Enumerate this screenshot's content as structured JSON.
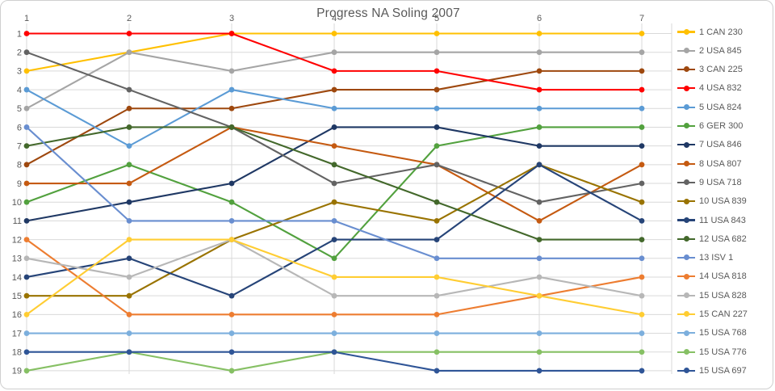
{
  "chart": {
    "title": "Progress NA Soling 2007"
  },
  "chart_data": {
    "type": "line",
    "title": "Progress NA Soling 2007",
    "x": [
      1,
      2,
      3,
      4,
      5,
      6,
      7
    ],
    "x_ticks": [
      "1",
      "2",
      "3",
      "4",
      "5",
      "6",
      "7"
    ],
    "x_axis_position": "top",
    "y_ticks": [
      "1",
      "2",
      "3",
      "4",
      "5",
      "6",
      "7",
      "8",
      "9",
      "10",
      "11",
      "12",
      "13",
      "14",
      "15",
      "16",
      "17",
      "18",
      "19"
    ],
    "y_axis": {
      "min": 1,
      "max": 19,
      "inverted": true,
      "meaning": "regatta standing (1 = first place), competition ranking with ties"
    },
    "grid": true,
    "legend_position": "right",
    "gridline_color": "#D9D9D9",
    "tick_color": "#595959",
    "title_color": "#595959",
    "series": [
      {
        "name": "1 CAN 230",
        "color": "#FFC000",
        "values": [
          3,
          2,
          1,
          1,
          1,
          1,
          1
        ]
      },
      {
        "name": "2 USA 845",
        "color": "#A5A5A5",
        "values": [
          5,
          2,
          3,
          2,
          2,
          2,
          2
        ]
      },
      {
        "name": "3 CAN 225",
        "color": "#9E480E",
        "values": [
          8,
          5,
          5,
          4,
          4,
          3,
          3
        ]
      },
      {
        "name": "4 USA 832",
        "color": "#FF0000",
        "values": [
          1,
          1,
          1,
          3,
          3,
          4,
          4
        ]
      },
      {
        "name": "5 USA 824",
        "color": "#5B9BD5",
        "values": [
          4,
          7,
          4,
          5,
          5,
          5,
          5
        ]
      },
      {
        "name": "6 GER 300",
        "color": "#52A13E",
        "values": [
          10,
          8,
          10,
          13,
          7,
          6,
          6
        ]
      },
      {
        "name": "7 USA 846",
        "color": "#1F3864",
        "values": [
          11,
          10,
          9,
          6,
          6,
          7,
          7
        ]
      },
      {
        "name": "8 USA 807",
        "color": "#C55A11",
        "values": [
          9,
          9,
          6,
          7,
          8,
          11,
          8
        ]
      },
      {
        "name": "9 USA 718",
        "color": "#636363",
        "values": [
          2,
          4,
          6,
          9,
          8,
          10,
          9
        ]
      },
      {
        "name": "10 USA 839",
        "color": "#997300",
        "values": [
          15,
          15,
          12,
          10,
          11,
          8,
          10
        ]
      },
      {
        "name": "11 USA 843",
        "color": "#264478",
        "values": [
          14,
          13,
          15,
          12,
          12,
          8,
          11
        ]
      },
      {
        "name": "12 USA 682",
        "color": "#43682B",
        "values": [
          7,
          6,
          6,
          8,
          10,
          12,
          12
        ]
      },
      {
        "name": "13 ISV 1",
        "color": "#698ED0",
        "values": [
          6,
          11,
          11,
          11,
          13,
          13,
          13
        ]
      },
      {
        "name": "14 USA 818",
        "color": "#ED7D31",
        "values": [
          12,
          16,
          16,
          16,
          16,
          15,
          14
        ]
      },
      {
        "name": "15 USA 828",
        "color": "#B7B7B7",
        "values": [
          13,
          14,
          12,
          15,
          15,
          14,
          15
        ]
      },
      {
        "name": "15 CAN 227",
        "color": "#FFCD33",
        "values": [
          16,
          12,
          12,
          14,
          14,
          15,
          16
        ]
      },
      {
        "name": "15 USA 768",
        "color": "#7CAFDD",
        "values": [
          17,
          17,
          17,
          17,
          17,
          17,
          17
        ]
      },
      {
        "name": "15 USA 776",
        "color": "#86C064",
        "values": [
          19,
          18,
          19,
          18,
          18,
          18,
          18
        ]
      },
      {
        "name": "15 USA 697",
        "color": "#2F5597",
        "values": [
          18,
          18,
          18,
          18,
          19,
          19,
          19
        ]
      }
    ]
  }
}
